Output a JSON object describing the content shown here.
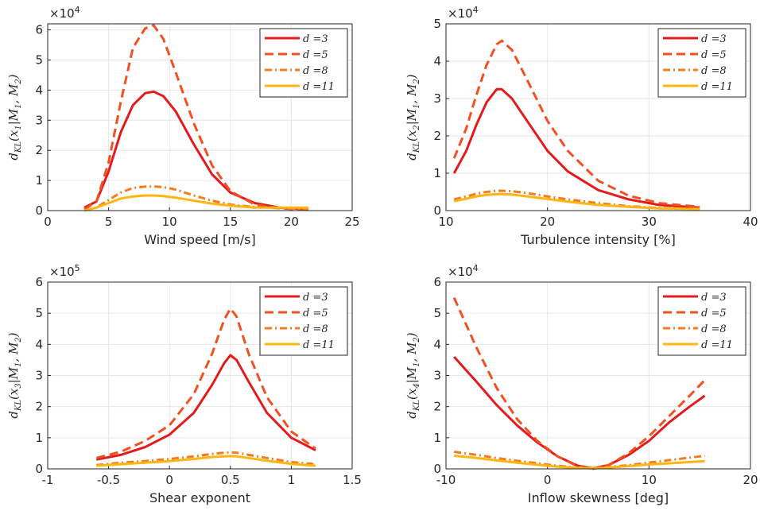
{
  "chart_data": [
    {
      "type": "line",
      "xlabel": "Wind speed [m/s]",
      "ylabel": "d_KL(x_1|M_1, M_2)",
      "multiplier": "×10^4",
      "xlim": [
        0,
        25
      ],
      "ylim": [
        0,
        6.2
      ],
      "xticks": [
        "0",
        "5",
        "10",
        "15",
        "20",
        "25"
      ],
      "yticks": [
        "0",
        "1",
        "2",
        "3",
        "4",
        "5",
        "6"
      ],
      "legend_position": "top-right",
      "grid": true,
      "x": [
        3.0,
        4.0,
        5.0,
        6.0,
        7.0,
        8.0,
        8.7,
        9.5,
        10.5,
        12.0,
        13.5,
        15.0,
        17.0,
        19.0,
        21.4
      ],
      "series": [
        {
          "name": "d =3",
          "color": "#e41a1c",
          "dash": "solid",
          "values": [
            0.1,
            0.3,
            1.3,
            2.6,
            3.5,
            3.9,
            3.95,
            3.8,
            3.3,
            2.2,
            1.2,
            0.6,
            0.25,
            0.1,
            0.05
          ]
        },
        {
          "name": "d =5",
          "color": "#f25022",
          "dash": "dashed",
          "values": [
            0.05,
            0.3,
            1.6,
            3.6,
            5.4,
            6.05,
            6.15,
            5.7,
            4.6,
            2.9,
            1.5,
            0.65,
            0.2,
            0.08,
            0.02
          ]
        },
        {
          "name": "d =8",
          "color": "#f57c1f",
          "dash": "dashdot",
          "values": [
            0.02,
            0.1,
            0.35,
            0.6,
            0.75,
            0.8,
            0.8,
            0.78,
            0.7,
            0.5,
            0.33,
            0.2,
            0.12,
            0.08,
            0.06
          ]
        },
        {
          "name": "d =11",
          "color": "#ffb612",
          "dash": "solid",
          "values": [
            0.0,
            0.1,
            0.25,
            0.4,
            0.47,
            0.5,
            0.5,
            0.48,
            0.43,
            0.33,
            0.23,
            0.16,
            0.1,
            0.1,
            0.1
          ]
        }
      ]
    },
    {
      "type": "line",
      "xlabel": "Turbulence intensity [%]",
      "ylabel": "d_KL(x_2|M_1, M_2)",
      "multiplier": "×10^4",
      "xlim": [
        10,
        40
      ],
      "ylim": [
        0,
        5
      ],
      "xticks": [
        "10",
        "20",
        "30",
        "40"
      ],
      "yticks": [
        "0",
        "1",
        "2",
        "3",
        "4",
        "5"
      ],
      "legend_position": "top-right",
      "grid": true,
      "x": [
        10.8,
        12.0,
        13.0,
        14.0,
        15.0,
        15.5,
        16.5,
        18.0,
        20.0,
        22.0,
        25.0,
        28.0,
        31.0,
        35.0
      ],
      "series": [
        {
          "name": "d =3",
          "color": "#e41a1c",
          "dash": "solid",
          "values": [
            1.0,
            1.6,
            2.3,
            2.9,
            3.25,
            3.25,
            3.0,
            2.4,
            1.6,
            1.05,
            0.55,
            0.3,
            0.15,
            0.08
          ]
        },
        {
          "name": "d =5",
          "color": "#f25022",
          "dash": "dashed",
          "values": [
            1.4,
            2.2,
            3.1,
            3.9,
            4.45,
            4.55,
            4.3,
            3.5,
            2.4,
            1.6,
            0.8,
            0.4,
            0.2,
            0.1
          ]
        },
        {
          "name": "d =8",
          "color": "#f57c1f",
          "dash": "dashdot",
          "values": [
            0.3,
            0.38,
            0.45,
            0.5,
            0.53,
            0.53,
            0.52,
            0.47,
            0.38,
            0.3,
            0.2,
            0.12,
            0.07,
            0.05
          ]
        },
        {
          "name": "d =11",
          "color": "#ffb612",
          "dash": "solid",
          "values": [
            0.25,
            0.32,
            0.38,
            0.42,
            0.44,
            0.44,
            0.43,
            0.38,
            0.31,
            0.24,
            0.15,
            0.1,
            0.06,
            0.04
          ]
        }
      ]
    },
    {
      "type": "line",
      "xlabel": "Shear exponent",
      "ylabel": "d_KL(x_3|M_1, M_2)",
      "multiplier": "×10^5",
      "xlim": [
        -1,
        1.5
      ],
      "ylim": [
        0,
        6
      ],
      "xticks": [
        "-1",
        "-0.5",
        "0",
        "0.5",
        "1",
        "1.5"
      ],
      "yticks": [
        "0",
        "1",
        "2",
        "3",
        "4",
        "5",
        "6"
      ],
      "legend_position": "top-right",
      "grid": true,
      "x": [
        -0.6,
        -0.4,
        -0.2,
        0.0,
        0.2,
        0.35,
        0.45,
        0.5,
        0.55,
        0.65,
        0.8,
        1.0,
        1.2
      ],
      "series": [
        {
          "name": "d =3",
          "color": "#e41a1c",
          "dash": "solid",
          "values": [
            0.3,
            0.45,
            0.7,
            1.1,
            1.8,
            2.7,
            3.4,
            3.65,
            3.5,
            2.8,
            1.8,
            1.0,
            0.6
          ]
        },
        {
          "name": "d =5",
          "color": "#f25022",
          "dash": "dashed",
          "values": [
            0.35,
            0.55,
            0.9,
            1.4,
            2.4,
            3.7,
            4.8,
            5.15,
            4.9,
            3.7,
            2.3,
            1.2,
            0.65
          ]
        },
        {
          "name": "d =8",
          "color": "#f57c1f",
          "dash": "dashdot",
          "values": [
            0.12,
            0.2,
            0.25,
            0.32,
            0.4,
            0.48,
            0.52,
            0.53,
            0.52,
            0.45,
            0.35,
            0.22,
            0.15
          ]
        },
        {
          "name": "d =11",
          "color": "#ffb612",
          "dash": "solid",
          "values": [
            0.1,
            0.15,
            0.2,
            0.25,
            0.32,
            0.38,
            0.4,
            0.41,
            0.4,
            0.35,
            0.26,
            0.16,
            0.1
          ]
        }
      ]
    },
    {
      "type": "line",
      "xlabel": "Inflow skewness [deg]",
      "ylabel": "d_KL(x_4|M_1, M_2)",
      "multiplier": "×10^4",
      "xlim": [
        -10,
        20
      ],
      "ylim": [
        0,
        6
      ],
      "xticks": [
        "-10",
        "0",
        "10",
        "20"
      ],
      "yticks": [
        "0",
        "1",
        "2",
        "3",
        "4",
        "5",
        "6"
      ],
      "legend_position": "top-right",
      "grid": true,
      "x": [
        -9.2,
        -7.0,
        -5.0,
        -3.0,
        -1.0,
        1.0,
        3.0,
        4.5,
        6.0,
        8.0,
        10.0,
        12.0,
        14.0,
        15.5
      ],
      "series": [
        {
          "name": "d =3",
          "color": "#e41a1c",
          "dash": "solid",
          "values": [
            3.6,
            2.8,
            2.05,
            1.4,
            0.85,
            0.4,
            0.1,
            0.02,
            0.12,
            0.45,
            0.9,
            1.5,
            2.0,
            2.35
          ]
        },
        {
          "name": "d =5",
          "color": "#f25022",
          "dash": "dashed",
          "values": [
            5.5,
            3.9,
            2.6,
            1.6,
            0.9,
            0.4,
            0.08,
            0.0,
            0.12,
            0.5,
            1.05,
            1.7,
            2.35,
            2.85
          ]
        },
        {
          "name": "d =8",
          "color": "#f57c1f",
          "dash": "dashdot",
          "values": [
            0.55,
            0.45,
            0.35,
            0.26,
            0.18,
            0.1,
            0.04,
            0.03,
            0.06,
            0.12,
            0.2,
            0.28,
            0.36,
            0.42
          ]
        },
        {
          "name": "d =11",
          "color": "#ffb612",
          "dash": "solid",
          "values": [
            0.42,
            0.35,
            0.27,
            0.2,
            0.13,
            0.07,
            0.03,
            0.02,
            0.04,
            0.09,
            0.14,
            0.18,
            0.22,
            0.25
          ]
        }
      ]
    }
  ]
}
